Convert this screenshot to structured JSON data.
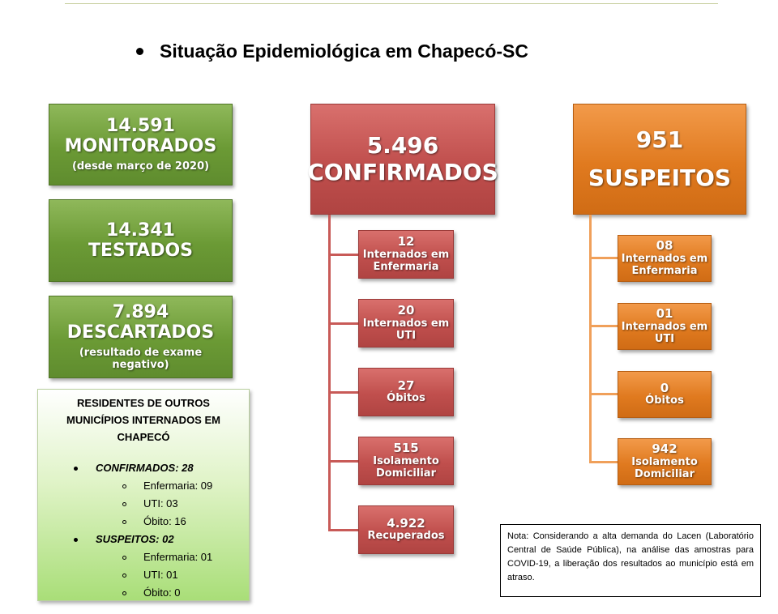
{
  "header": {
    "title": "Situação Epidemiológica em Chapecó-SC"
  },
  "left": {
    "monitorados": {
      "number": "14.591",
      "label": "MONITORADOS",
      "note": "(desde março de 2020)"
    },
    "testados": {
      "number": "14.341",
      "label": "TESTADOS"
    },
    "descartados": {
      "number": "7.894",
      "label": "DESCARTADOS",
      "note": "(resultado de exame negativo)"
    }
  },
  "confirmados": {
    "number": "5.496",
    "label": "CONFIRMADOS",
    "items": [
      {
        "number": "12",
        "label": "Internados em Enfermaria"
      },
      {
        "number": "20",
        "label": "Internados em UTI"
      },
      {
        "number": "27",
        "label": "Óbitos"
      },
      {
        "number": "515",
        "label": "Isolamento Domiciliar"
      },
      {
        "number": "4.922",
        "label": "Recuperados"
      }
    ]
  },
  "suspeitos": {
    "number": "951",
    "label": "SUSPEITOS",
    "items": [
      {
        "number": "08",
        "label": "Internados em Enfermaria"
      },
      {
        "number": "01",
        "label": "Internados em UTI"
      },
      {
        "number": "0",
        "label": "Óbitos"
      },
      {
        "number": "942",
        "label": "Isolamento Domiciliar"
      }
    ]
  },
  "residents": {
    "title_line1": "RESIDENTES DE OUTROS",
    "title_line2": "MUNICÍPIOS INTERNADOS EM",
    "title_line3": "CHAPECÓ",
    "confirmados": "CONFIRMADOS: 28",
    "conf_items": [
      "Enfermaria: 09",
      "UTI: 03",
      "Óbito: 16"
    ],
    "suspeitos": "SUSPEITOS: 02",
    "susp_items": [
      "Enfermaria: 01",
      "UTI: 01",
      "Óbito: 0"
    ]
  },
  "note": {
    "text": "Nota: Considerando a alta demanda do Lacen (Laboratório Central de Saúde Pública), na análise das amostras para COVID-19, a liberação dos resultados ao município está em atraso."
  },
  "colors": {
    "green": "#6b9a35",
    "red": "#c04f4d",
    "orange": "#e07a1f"
  }
}
